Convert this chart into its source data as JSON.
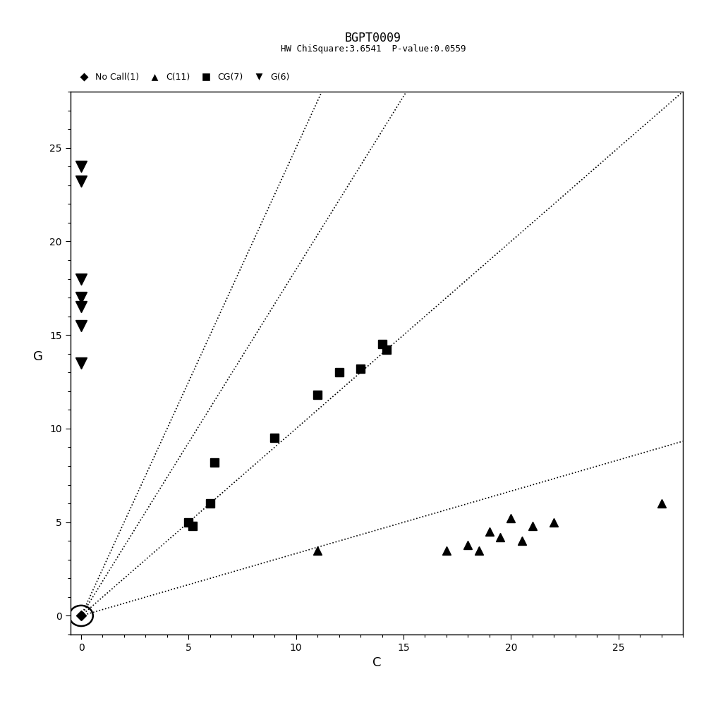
{
  "title": "BGPT0009",
  "subtitle": "HW ChiSquare:3.6541  P-value:0.0559",
  "xlabel": "C",
  "ylabel": "G",
  "xlim": [
    -0.5,
    28
  ],
  "ylim": [
    -1.0,
    28
  ],
  "xticks": [
    0,
    5,
    10,
    15,
    20,
    25
  ],
  "yticks": [
    0,
    5,
    10,
    15,
    20,
    25
  ],
  "no_call_x": [
    0
  ],
  "no_call_y": [
    0
  ],
  "C_x": [
    11,
    17,
    18,
    18.5,
    19,
    19.5,
    20,
    20.5,
    21,
    27,
    22
  ],
  "C_y": [
    3.5,
    3.5,
    3.8,
    3.5,
    4.5,
    4.2,
    5.2,
    4.0,
    4.8,
    6.0,
    5.0
  ],
  "CG_x": [
    5,
    5.2,
    6,
    6.2,
    9,
    11,
    12,
    13,
    14,
    14.2
  ],
  "CG_y": [
    5.0,
    4.8,
    6.0,
    8.2,
    9.5,
    11.8,
    13.0,
    13.2,
    14.5,
    14.2
  ],
  "G_x": [
    0,
    0,
    0,
    0,
    0,
    0,
    0
  ],
  "G_y": [
    24.0,
    23.2,
    18.0,
    17.0,
    16.5,
    15.5,
    13.5
  ],
  "line_slope1": 2.5,
  "line_slope2": 1.0,
  "line_slope3": 0.333,
  "line_slope4": 1.85,
  "background_color": "#ffffff",
  "marker_color": "#000000",
  "marker_size": 10,
  "legend_fontsize": 9,
  "title_fontsize": 12,
  "subtitle_fontsize": 9,
  "axis_label_fontsize": 13
}
